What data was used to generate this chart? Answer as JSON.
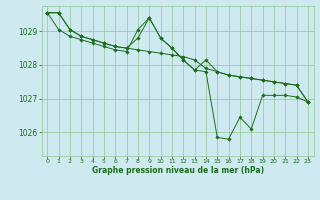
{
  "bg_color": "#ceeaf0",
  "grid_color": "#90c890",
  "line_color": "#1a6e1a",
  "marker_color": "#1a6e1a",
  "xlabel": "Graphe pression niveau de la mer (hPa)",
  "xlabel_color": "#1a6e1a",
  "yticks": [
    1026,
    1027,
    1028,
    1029
  ],
  "xticks": [
    0,
    1,
    2,
    3,
    4,
    5,
    6,
    7,
    8,
    9,
    10,
    11,
    12,
    13,
    14,
    15,
    16,
    17,
    18,
    19,
    20,
    21,
    22,
    23
  ],
  "xlim": [
    -0.5,
    23.5
  ],
  "ylim": [
    1025.3,
    1029.75
  ],
  "series1": [
    1029.55,
    1029.55,
    1029.05,
    1028.85,
    1028.75,
    1028.65,
    1028.55,
    1028.5,
    1028.45,
    1028.4,
    1028.35,
    1028.3,
    1028.25,
    1028.15,
    1027.9,
    1027.8,
    1027.7,
    1027.65,
    1027.6,
    1027.55,
    1027.5,
    1027.45,
    1027.4,
    1026.9
  ],
  "series2": [
    1029.55,
    1029.05,
    1028.85,
    1028.75,
    1028.65,
    1028.55,
    1028.45,
    1028.4,
    1029.05,
    1029.4,
    1028.8,
    1028.5,
    1028.15,
    1027.85,
    1027.8,
    1025.85,
    1025.8,
    1026.45,
    1026.1,
    1027.1,
    1027.1,
    1027.1,
    1027.05,
    1026.9
  ],
  "series3": [
    1029.55,
    1029.55,
    1029.05,
    1028.85,
    1028.75,
    1028.65,
    1028.55,
    1028.5,
    1028.8,
    1029.4,
    1028.8,
    1028.5,
    1028.15,
    1027.85,
    1028.15,
    1027.8,
    1027.7,
    1027.65,
    1027.6,
    1027.55,
    1027.5,
    1027.45,
    1027.4,
    1026.9
  ]
}
